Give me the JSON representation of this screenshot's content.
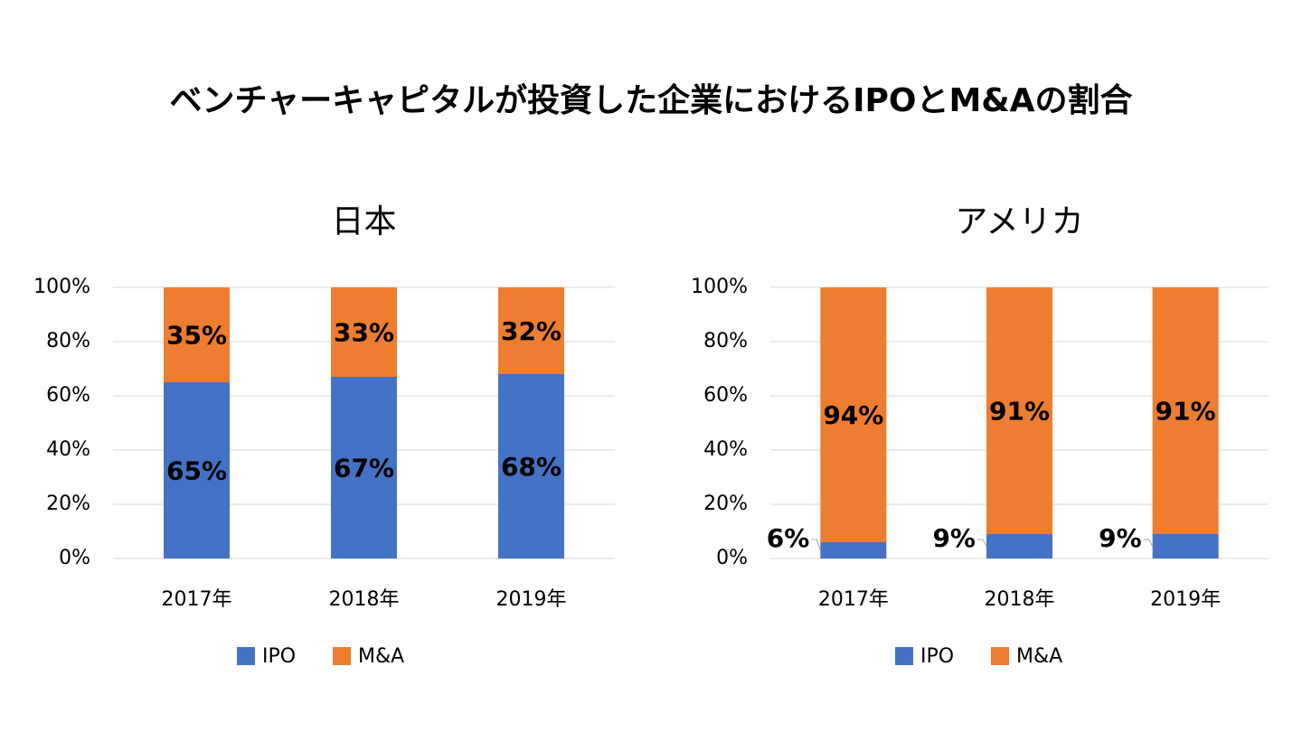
{
  "title": "ベンチャーキャピタルが投資した企業におけるIPOとM&Aの割合",
  "chart_data": [
    {
      "type": "bar",
      "stacked": true,
      "title": "日本",
      "categories": [
        "2017年",
        "2018年",
        "2019年"
      ],
      "series": [
        {
          "name": "IPO",
          "color": "#4472c4",
          "values": [
            65,
            67,
            68
          ],
          "value_labels": [
            "65%",
            "67%",
            "68%"
          ]
        },
        {
          "name": "M&A",
          "color": "#ed7d31",
          "values": [
            35,
            33,
            32
          ],
          "value_labels": [
            "35%",
            "33%",
            "32%"
          ]
        }
      ],
      "ylim": [
        0,
        100
      ],
      "yticks": [
        {
          "value": 0,
          "label": "0%"
        },
        {
          "value": 20,
          "label": "20%"
        },
        {
          "value": 40,
          "label": "40%"
        },
        {
          "value": 60,
          "label": "60%"
        },
        {
          "value": 80,
          "label": "80%"
        },
        {
          "value": 100,
          "label": "100%"
        }
      ],
      "grid": true,
      "legend": "bottom"
    },
    {
      "type": "bar",
      "stacked": true,
      "title": "アメリカ",
      "categories": [
        "2017年",
        "2018年",
        "2019年"
      ],
      "series": [
        {
          "name": "IPO",
          "color": "#4472c4",
          "values": [
            6,
            9,
            9
          ],
          "value_labels": [
            "6%",
            "9%",
            "9%"
          ]
        },
        {
          "name": "M&A",
          "color": "#ed7d31",
          "values": [
            94,
            91,
            91
          ],
          "value_labels": [
            "94%",
            "91%",
            "91%"
          ]
        }
      ],
      "ylim": [
        0,
        100
      ],
      "yticks": [
        {
          "value": 0,
          "label": "0%"
        },
        {
          "value": 20,
          "label": "20%"
        },
        {
          "value": 40,
          "label": "40%"
        },
        {
          "value": 60,
          "label": "60%"
        },
        {
          "value": 80,
          "label": "80%"
        },
        {
          "value": 100,
          "label": "100%"
        }
      ],
      "grid": true,
      "legend": "bottom"
    }
  ]
}
